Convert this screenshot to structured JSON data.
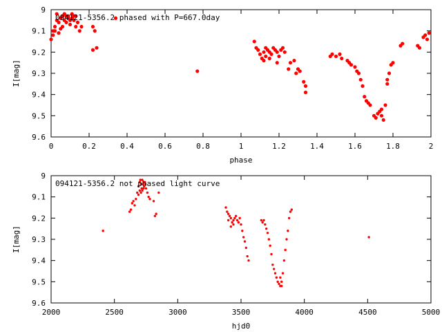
{
  "chart_data": [
    {
      "type": "scatter",
      "title": "094121-5356.2 phased with P=667.0day",
      "xlabel": "phase",
      "ylabel": "I[mag]",
      "xlim": [
        0,
        2
      ],
      "ylim": [
        9.6,
        9.0
      ],
      "y_inverted": true,
      "grid": false,
      "x_ticks": [
        "0",
        "0.2",
        "0.4",
        "0.6",
        "0.8",
        "1",
        "1.2",
        "1.4",
        "1.6",
        "1.8",
        "2"
      ],
      "x_tick_values": [
        0,
        0.2,
        0.4,
        0.6,
        0.8,
        1.0,
        1.2,
        1.4,
        1.6,
        1.8,
        2.0
      ],
      "y_ticks": [
        "9",
        "9.1",
        "9.2",
        "9.3",
        "9.4",
        "9.5",
        "9.6"
      ],
      "y_tick_values": [
        9.0,
        9.1,
        9.2,
        9.3,
        9.4,
        9.5,
        9.6
      ],
      "marker_color": "#ff0000",
      "series": [
        {
          "points": [
            [
              0.0,
              9.14
            ],
            [
              0.01,
              9.1
            ],
            [
              0.01,
              9.12
            ],
            [
              0.02,
              9.08
            ],
            [
              0.03,
              9.05
            ],
            [
              0.03,
              9.02
            ],
            [
              0.04,
              9.06
            ],
            [
              0.05,
              9.04
            ],
            [
              0.06,
              9.08
            ],
            [
              0.06,
              9.03
            ],
            [
              0.07,
              9.05
            ],
            [
              0.07,
              9.02
            ],
            [
              0.08,
              9.06
            ],
            [
              0.09,
              9.04
            ],
            [
              0.09,
              9.03
            ],
            [
              0.1,
              9.05
            ],
            [
              0.1,
              9.07
            ],
            [
              0.11,
              9.04
            ],
            [
              0.12,
              9.03
            ],
            [
              0.12,
              9.05
            ],
            [
              0.13,
              9.08
            ],
            [
              0.14,
              9.06
            ],
            [
              0.15,
              9.1
            ],
            [
              0.16,
              9.08
            ],
            [
              0.05,
              9.09
            ],
            [
              0.04,
              9.11
            ],
            [
              0.02,
              9.1
            ],
            [
              0.08,
              9.03
            ],
            [
              0.11,
              9.02
            ],
            [
              0.13,
              9.03
            ],
            [
              0.22,
              9.08
            ],
            [
              0.23,
              9.1
            ],
            [
              0.22,
              9.19
            ],
            [
              0.24,
              9.18
            ],
            [
              0.34,
              9.04
            ],
            [
              0.77,
              9.29
            ],
            [
              1.07,
              9.15
            ],
            [
              1.08,
              9.18
            ],
            [
              1.09,
              9.19
            ],
            [
              1.1,
              9.21
            ],
            [
              1.11,
              9.23
            ],
            [
              1.12,
              9.2
            ],
            [
              1.13,
              9.18
            ],
            [
              1.13,
              9.22
            ],
            [
              1.14,
              9.19
            ],
            [
              1.15,
              9.2
            ],
            [
              1.16,
              9.21
            ],
            [
              1.17,
              9.18
            ],
            [
              1.18,
              9.19
            ],
            [
              1.19,
              9.2
            ],
            [
              1.2,
              9.22
            ],
            [
              1.21,
              9.19
            ],
            [
              1.22,
              9.18
            ],
            [
              1.23,
              9.2
            ],
            [
              1.25,
              9.28
            ],
            [
              1.26,
              9.25
            ],
            [
              1.28,
              9.24
            ],
            [
              1.29,
              9.3
            ],
            [
              1.3,
              9.28
            ],
            [
              1.31,
              9.29
            ],
            [
              1.33,
              9.34
            ],
            [
              1.34,
              9.36
            ],
            [
              1.34,
              9.39
            ],
            [
              1.12,
              9.24
            ],
            [
              1.15,
              9.23
            ],
            [
              1.19,
              9.25
            ],
            [
              1.47,
              9.22
            ],
            [
              1.48,
              9.21
            ],
            [
              1.5,
              9.22
            ],
            [
              1.52,
              9.21
            ],
            [
              1.53,
              9.23
            ],
            [
              1.56,
              9.24
            ],
            [
              1.57,
              9.25
            ],
            [
              1.58,
              9.26
            ],
            [
              1.6,
              9.27
            ],
            [
              1.61,
              9.29
            ],
            [
              1.62,
              9.3
            ],
            [
              1.63,
              9.33
            ],
            [
              1.64,
              9.36
            ],
            [
              1.65,
              9.41
            ],
            [
              1.66,
              9.43
            ],
            [
              1.67,
              9.44
            ],
            [
              1.68,
              9.45
            ],
            [
              1.7,
              9.5
            ],
            [
              1.71,
              9.51
            ],
            [
              1.72,
              9.49
            ],
            [
              1.73,
              9.48
            ],
            [
              1.74,
              9.47
            ],
            [
              1.75,
              9.52
            ],
            [
              1.76,
              9.45
            ],
            [
              1.77,
              9.35
            ],
            [
              1.78,
              9.3
            ],
            [
              1.79,
              9.26
            ],
            [
              1.8,
              9.25
            ],
            [
              1.77,
              9.33
            ],
            [
              1.74,
              9.5
            ],
            [
              1.84,
              9.17
            ],
            [
              1.85,
              9.16
            ],
            [
              1.93,
              9.17
            ],
            [
              1.94,
              9.18
            ],
            [
              1.96,
              9.13
            ],
            [
              1.97,
              9.12
            ],
            [
              1.98,
              9.14
            ],
            [
              1.99,
              9.11
            ]
          ]
        }
      ]
    },
    {
      "type": "scatter",
      "title": "094121-5356.2 not phased light curve",
      "xlabel": "hjd0",
      "ylabel": "I[mag]",
      "xlim": [
        2000,
        5000
      ],
      "ylim": [
        9.6,
        9.0
      ],
      "y_inverted": true,
      "grid": false,
      "x_ticks": [
        "2000",
        "2500",
        "3000",
        "3500",
        "4000",
        "4500",
        "5000"
      ],
      "x_tick_values": [
        2000,
        2500,
        3000,
        3500,
        4000,
        4500,
        5000
      ],
      "y_ticks": [
        "9",
        "9.1",
        "9.2",
        "9.3",
        "9.4",
        "9.5",
        "9.6"
      ],
      "y_tick_values": [
        9.0,
        9.1,
        9.2,
        9.3,
        9.4,
        9.5,
        9.6
      ],
      "marker_color": "#ff0000",
      "series": [
        {
          "points": [
            [
              2410,
              9.26
            ],
            [
              2620,
              9.17
            ],
            [
              2630,
              9.16
            ],
            [
              2640,
              9.13
            ],
            [
              2650,
              9.12
            ],
            [
              2660,
              9.14
            ],
            [
              2670,
              9.11
            ],
            [
              2680,
              9.08
            ],
            [
              2690,
              9.05
            ],
            [
              2700,
              9.03
            ],
            [
              2705,
              9.02
            ],
            [
              2710,
              9.04
            ],
            [
              2715,
              9.06
            ],
            [
              2720,
              9.02
            ],
            [
              2725,
              9.04
            ],
            [
              2730,
              9.03
            ],
            [
              2735,
              9.05
            ],
            [
              2740,
              9.03
            ],
            [
              2745,
              9.04
            ],
            [
              2750,
              9.06
            ],
            [
              2760,
              9.08
            ],
            [
              2770,
              9.1
            ],
            [
              2780,
              9.11
            ],
            [
              2690,
              9.09
            ],
            [
              2700,
              9.07
            ],
            [
              2710,
              9.08
            ],
            [
              2720,
              9.07
            ],
            [
              2730,
              9.06
            ],
            [
              2810,
              9.12
            ],
            [
              2820,
              9.19
            ],
            [
              2830,
              9.18
            ],
            [
              2850,
              9.08
            ],
            [
              3380,
              9.15
            ],
            [
              3390,
              9.17
            ],
            [
              3400,
              9.18
            ],
            [
              3410,
              9.19
            ],
            [
              3420,
              9.2
            ],
            [
              3430,
              9.22
            ],
            [
              3440,
              9.21
            ],
            [
              3450,
              9.2
            ],
            [
              3460,
              9.19
            ],
            [
              3470,
              9.21
            ],
            [
              3480,
              9.22
            ],
            [
              3490,
              9.2
            ],
            [
              3500,
              9.23
            ],
            [
              3510,
              9.26
            ],
            [
              3520,
              9.29
            ],
            [
              3530,
              9.31
            ],
            [
              3540,
              9.34
            ],
            [
              3550,
              9.38
            ],
            [
              3560,
              9.4
            ],
            [
              3400,
              9.21
            ],
            [
              3420,
              9.24
            ],
            [
              3440,
              9.23
            ],
            [
              3660,
              9.21
            ],
            [
              3670,
              9.22
            ],
            [
              3680,
              9.21
            ],
            [
              3690,
              9.23
            ],
            [
              3700,
              9.25
            ],
            [
              3710,
              9.27
            ],
            [
              3720,
              9.3
            ],
            [
              3730,
              9.33
            ],
            [
              3740,
              9.37
            ],
            [
              3750,
              9.42
            ],
            [
              3760,
              9.44
            ],
            [
              3770,
              9.46
            ],
            [
              3780,
              9.48
            ],
            [
              3790,
              9.5
            ],
            [
              3800,
              9.51
            ],
            [
              3810,
              9.52
            ],
            [
              3820,
              9.5
            ],
            [
              3830,
              9.46
            ],
            [
              3840,
              9.4
            ],
            [
              3850,
              9.35
            ],
            [
              3860,
              9.3
            ],
            [
              3870,
              9.26
            ],
            [
              3880,
              9.2
            ],
            [
              3890,
              9.17
            ],
            [
              3900,
              9.16
            ],
            [
              3810,
              9.48
            ],
            [
              3820,
              9.52
            ],
            [
              4510,
              9.29
            ]
          ]
        }
      ]
    }
  ]
}
